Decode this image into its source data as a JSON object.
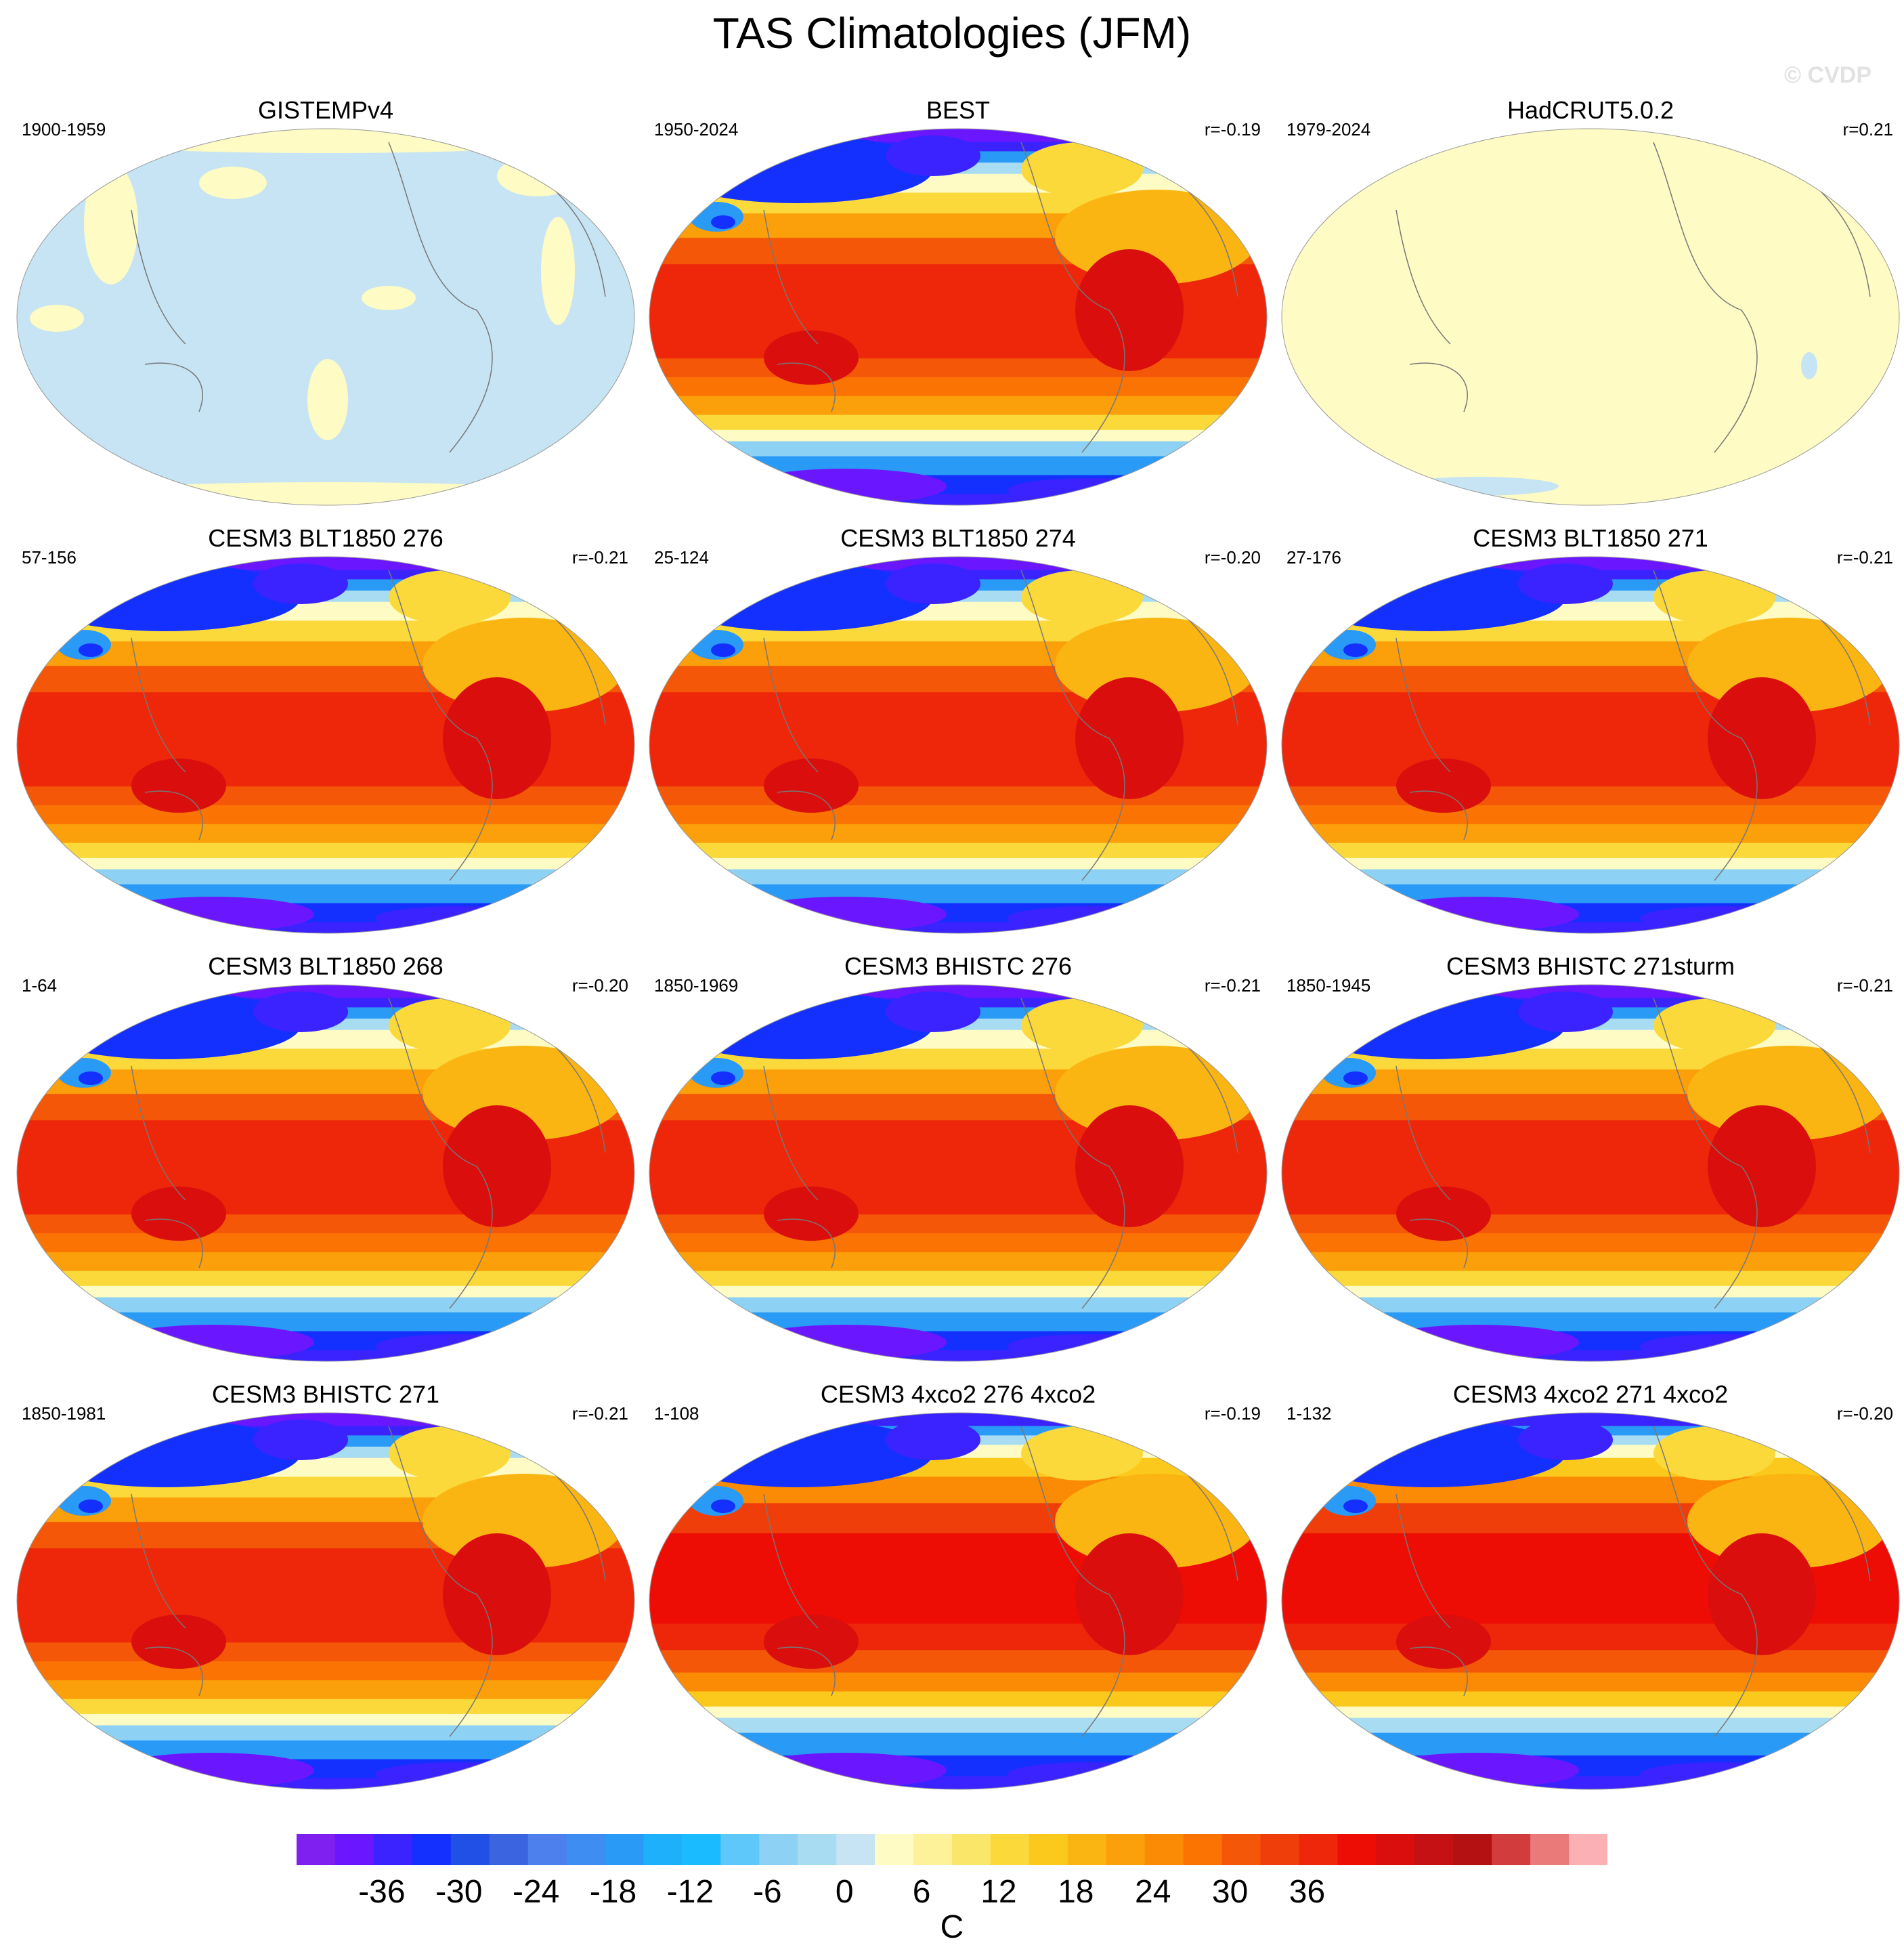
{
  "figure_title": "TAS Climatologies (JFM)",
  "watermark": "© CVDP",
  "units": "C",
  "colorbar": {
    "colors": [
      "#7f1ff0",
      "#6a17ff",
      "#3b23ff",
      "#1330ff",
      "#2050e6",
      "#3a64e0",
      "#4d7fed",
      "#3d8df2",
      "#2a9af7",
      "#1fb0fb",
      "#1bbcff",
      "#5ec8fa",
      "#8dd2f4",
      "#a8dcf3",
      "#c6e4f3",
      "#fefbc4",
      "#fdf29a",
      "#fae76a",
      "#fbd93a",
      "#fbc81c",
      "#fbb512",
      "#fb9f0a",
      "#fb8a05",
      "#fa7303",
      "#f45708",
      "#f03e0a",
      "#ee260a",
      "#ee0d05",
      "#da0e0d",
      "#c51113",
      "#b31112",
      "#d33c3c",
      "#ea7a7a",
      "#fbb0b4"
    ],
    "tick_labels": [
      "-36",
      "-30",
      "-24",
      "-18",
      "-12",
      "-6",
      "0",
      "6",
      "12",
      "18",
      "24",
      "30",
      "36"
    ]
  },
  "panels": [
    {
      "name": "GISTEMPv4",
      "years": "1900-1959",
      "r": "",
      "style": "gist"
    },
    {
      "name": "BEST",
      "years": "1950-2024",
      "r": "r=-0.19",
      "style": "full"
    },
    {
      "name": "HadCRUT5.0.2",
      "years": "1979-2024",
      "r": "r=0.21",
      "style": "had"
    },
    {
      "name": "CESM3 BLT1850 276",
      "years": "57-156",
      "r": "r=-0.21",
      "style": "full"
    },
    {
      "name": "CESM3 BLT1850 274",
      "years": "25-124",
      "r": "r=-0.20",
      "style": "full"
    },
    {
      "name": "CESM3 BLT1850 271",
      "years": "27-176",
      "r": "r=-0.21",
      "style": "full"
    },
    {
      "name": "CESM3 BLT1850 268",
      "years": "1-64",
      "r": "r=-0.20",
      "style": "full"
    },
    {
      "name": "CESM3 BHISTC 276",
      "years": "1850-1969",
      "r": "r=-0.21",
      "style": "full"
    },
    {
      "name": "CESM3 BHISTC 271sturm",
      "years": "1850-1945",
      "r": "r=-0.21",
      "style": "full"
    },
    {
      "name": "CESM3 BHISTC 271",
      "years": "1850-1981",
      "r": "r=-0.21",
      "style": "full"
    },
    {
      "name": "CESM3 4xco2 276 4xco2",
      "years": "1-108",
      "r": "r=-0.19",
      "style": "warm"
    },
    {
      "name": "CESM3 4xco2 271 4xco2",
      "years": "1-132",
      "r": "r=-0.20",
      "style": "warm"
    }
  ],
  "chart_data": {
    "type": "heatmap",
    "title": "TAS Climatologies (JFM)",
    "units": "C",
    "season": "JFM",
    "variable": "TAS",
    "colorbar_range": [
      -40,
      40
    ],
    "colorbar_tick_labels": [
      "-36",
      "-30",
      "-24",
      "-18",
      "-12",
      "-6",
      "0",
      "6",
      "12",
      "18",
      "24",
      "30",
      "36"
    ],
    "panels": [
      {
        "name": "GISTEMPv4",
        "years": "1900-1959",
        "pattern_correlation": null
      },
      {
        "name": "BEST",
        "years": "1950-2024",
        "pattern_correlation": -0.19
      },
      {
        "name": "HadCRUT5.0.2",
        "years": "1979-2024",
        "pattern_correlation": 0.21
      },
      {
        "name": "CESM3 BLT1850 276",
        "years": "57-156",
        "pattern_correlation": -0.21
      },
      {
        "name": "CESM3 BLT1850 274",
        "years": "25-124",
        "pattern_correlation": -0.2
      },
      {
        "name": "CESM3 BLT1850 271",
        "years": "27-176",
        "pattern_correlation": -0.21
      },
      {
        "name": "CESM3 BLT1850 268",
        "years": "1-64",
        "pattern_correlation": -0.2
      },
      {
        "name": "CESM3 BHISTC 276",
        "years": "1850-1969",
        "pattern_correlation": -0.21
      },
      {
        "name": "CESM3 BHISTC 271sturm",
        "years": "1850-1945",
        "pattern_correlation": -0.21
      },
      {
        "name": "CESM3 BHISTC 271",
        "years": "1850-1981",
        "pattern_correlation": -0.21
      },
      {
        "name": "CESM3 4xco2 276 4xco2",
        "years": "1-108",
        "pattern_correlation": -0.19
      },
      {
        "name": "CESM3 4xco2 271 4xco2",
        "years": "1-132",
        "pattern_correlation": -0.2
      }
    ]
  }
}
